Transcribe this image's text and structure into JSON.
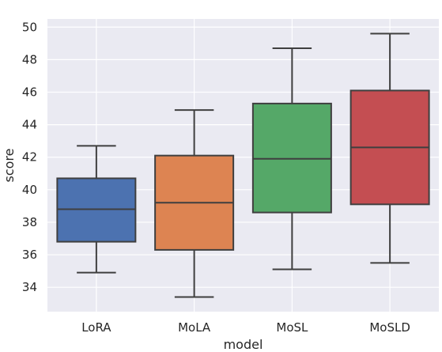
{
  "chart_data": {
    "type": "box",
    "xlabel": "model",
    "ylabel": "score",
    "ylim": [
      32.5,
      50.5
    ],
    "yticks": [
      34,
      36,
      38,
      40,
      42,
      44,
      46,
      48,
      50
    ],
    "grid": true,
    "categories": [
      "LoRA",
      "MoLA",
      "MoSL",
      "MoSLD"
    ],
    "boxes": [
      {
        "category": "LoRA",
        "min": 34.9,
        "q1": 36.8,
        "median": 38.8,
        "q3": 40.7,
        "max": 42.7,
        "color": "#4c72b0"
      },
      {
        "category": "MoLA",
        "min": 33.4,
        "q1": 36.3,
        "median": 39.2,
        "q3": 42.1,
        "max": 44.9,
        "color": "#dd8452"
      },
      {
        "category": "MoSL",
        "min": 35.1,
        "q1": 38.6,
        "median": 41.9,
        "q3": 45.3,
        "max": 48.7,
        "color": "#55a868"
      },
      {
        "category": "MoSLD",
        "min": 35.5,
        "q1": 39.1,
        "median": 42.6,
        "q3": 46.1,
        "max": 49.6,
        "color": "#c44e52"
      }
    ]
  }
}
